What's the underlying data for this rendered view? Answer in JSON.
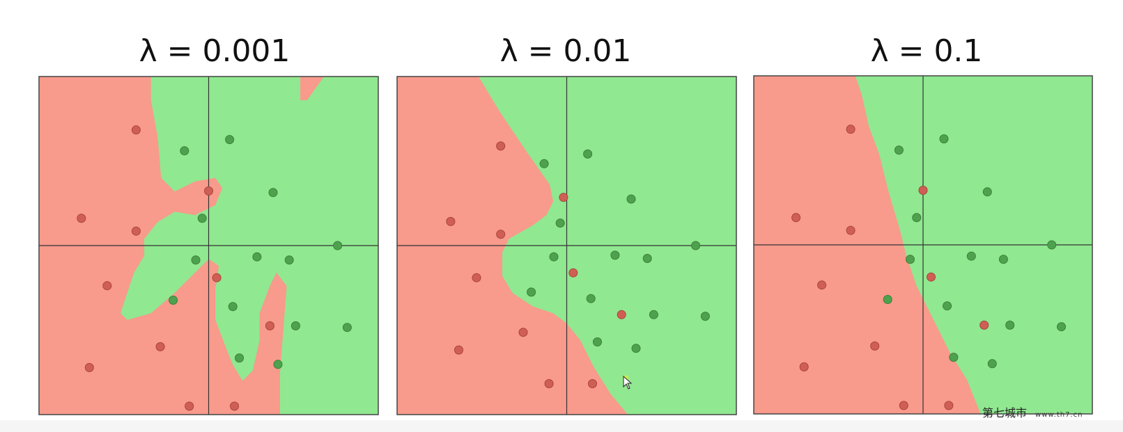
{
  "chart_data": [
    {
      "type": "scatter",
      "title": "λ = 0.001",
      "colors": {
        "red_region": "#f89a8c",
        "green_region": "#90e890",
        "red_point": "#cf5f55",
        "green_point": "#4ea24e"
      },
      "points": {
        "red": [
          [
            -0.45,
            0.72
          ],
          [
            -0.79,
            0.17
          ],
          [
            -0.45,
            0.09
          ],
          [
            0.0,
            0.34
          ],
          [
            -0.63,
            -0.25
          ],
          [
            0.05,
            -0.2
          ],
          [
            -0.3,
            -0.63
          ],
          [
            -0.74,
            -0.76
          ],
          [
            0.38,
            -0.5
          ],
          [
            -0.12,
            -1.0
          ],
          [
            0.16,
            -1.0
          ]
        ],
        "green": [
          [
            -0.15,
            0.59
          ],
          [
            0.13,
            0.66
          ],
          [
            0.4,
            0.33
          ],
          [
            -0.04,
            0.17
          ],
          [
            -0.08,
            -0.09
          ],
          [
            0.3,
            -0.07
          ],
          [
            0.5,
            -0.09
          ],
          [
            0.8,
            0.0
          ],
          [
            -0.22,
            -0.34
          ],
          [
            0.15,
            -0.38
          ],
          [
            0.54,
            -0.5
          ],
          [
            0.86,
            -0.51
          ],
          [
            0.19,
            -0.7
          ],
          [
            0.43,
            -0.74
          ]
        ]
      }
    },
    {
      "type": "scatter",
      "title": "λ = 0.01",
      "colors": {
        "red_region": "#f89a8c",
        "green_region": "#90e890",
        "red_point": "#cf5f55",
        "green_point": "#4ea24e"
      },
      "points": {
        "red": [
          [
            -0.41,
            0.62
          ],
          [
            -0.72,
            0.15
          ],
          [
            -0.41,
            0.07
          ],
          [
            -0.02,
            0.3
          ],
          [
            -0.56,
            -0.2
          ],
          [
            0.04,
            -0.17
          ],
          [
            -0.27,
            -0.54
          ],
          [
            -0.67,
            -0.65
          ],
          [
            0.34,
            -0.43
          ],
          [
            -0.11,
            -0.86
          ],
          [
            0.16,
            -0.86
          ]
        ],
        "green": [
          [
            -0.14,
            0.51
          ],
          [
            0.13,
            0.57
          ],
          [
            0.4,
            0.29
          ],
          [
            -0.04,
            0.14
          ],
          [
            -0.08,
            -0.07
          ],
          [
            0.3,
            -0.06
          ],
          [
            0.5,
            -0.08
          ],
          [
            0.8,
            0.0
          ],
          [
            -0.22,
            -0.29
          ],
          [
            0.15,
            -0.33
          ],
          [
            0.54,
            -0.43
          ],
          [
            0.86,
            -0.44
          ],
          [
            0.19,
            -0.6
          ],
          [
            0.43,
            -0.64
          ]
        ]
      }
    },
    {
      "type": "scatter",
      "title": "λ = 0.1",
      "colors": {
        "red_region": "#f89a8c",
        "green_region": "#90e890",
        "red_point": "#cf5f55",
        "green_point": "#4ea24e"
      },
      "points": {
        "red": [
          [
            -0.45,
            0.72
          ],
          [
            -0.79,
            0.17
          ],
          [
            -0.45,
            0.09
          ],
          [
            0.0,
            0.34
          ],
          [
            -0.63,
            -0.25
          ],
          [
            0.05,
            -0.2
          ],
          [
            -0.3,
            -0.63
          ],
          [
            -0.74,
            -0.76
          ],
          [
            0.38,
            -0.5
          ],
          [
            -0.12,
            -1.0
          ],
          [
            0.16,
            -1.0
          ]
        ],
        "green": [
          [
            -0.15,
            0.59
          ],
          [
            0.13,
            0.66
          ],
          [
            0.4,
            0.33
          ],
          [
            -0.04,
            0.17
          ],
          [
            -0.08,
            -0.09
          ],
          [
            0.3,
            -0.07
          ],
          [
            0.5,
            -0.09
          ],
          [
            0.8,
            0.0
          ],
          [
            -0.22,
            -0.34
          ],
          [
            0.15,
            -0.38
          ],
          [
            0.54,
            -0.5
          ],
          [
            0.86,
            -0.51
          ],
          [
            0.19,
            -0.7
          ],
          [
            0.43,
            -0.74
          ]
        ]
      }
    }
  ],
  "watermark": {
    "text": "第七城市",
    "url": "www.th7.cn"
  },
  "icons": {
    "cursor": "mouse-pointer-icon"
  }
}
